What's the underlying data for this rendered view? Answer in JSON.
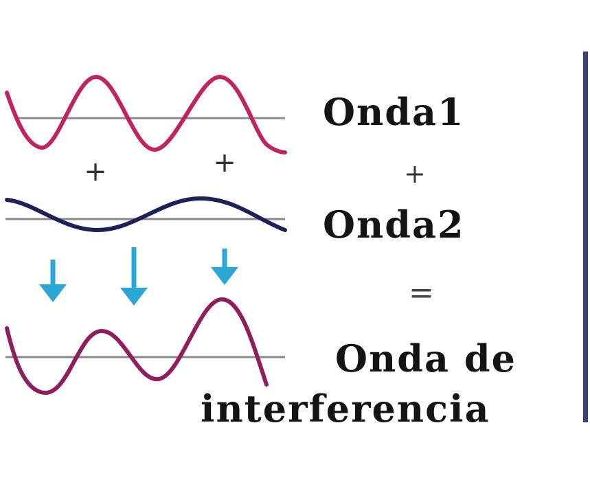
{
  "labels": {
    "wave1": "Onda1",
    "plus": "+",
    "wave2": "Onda2",
    "equals": "=",
    "result_line1": "Onda de",
    "result_line2": "interferencia"
  },
  "signs": {
    "plus": "+"
  },
  "colors": {
    "wave1": "#c0245e",
    "wave2": "#1c2257",
    "result": "#8e1f5c",
    "baseline": "#8a8a8a",
    "arrow": "#2aa7d6",
    "side_bar": "#3d3f7a"
  }
}
